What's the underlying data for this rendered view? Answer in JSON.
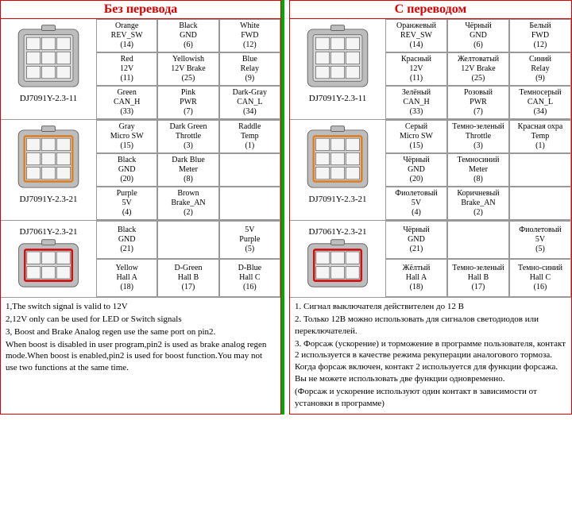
{
  "titles": {
    "left": "Без перевода",
    "right": "С переводом"
  },
  "connectors": {
    "c1": "DJ7091Y-2.3-11",
    "c2": "DJ7091Y-2.3-21",
    "c3": "DJ7061Y-2.3-21"
  },
  "left": {
    "c1": [
      {
        "color": "Orange",
        "sig": "REV_SW",
        "num": "(14)"
      },
      {
        "color": "Black",
        "sig": "GND",
        "num": "(6)"
      },
      {
        "color": "White",
        "sig": "FWD",
        "num": "(12)"
      },
      {
        "color": "Red",
        "sig": "12V",
        "num": "(11)"
      },
      {
        "color": "Yellowish",
        "sig": "12V Brake",
        "num": "(25)"
      },
      {
        "color": "Blue",
        "sig": "Relay",
        "num": "(9)"
      },
      {
        "color": "Green",
        "sig": "CAN_H",
        "num": "(33)"
      },
      {
        "color": "Pink",
        "sig": "PWR",
        "num": "(7)"
      },
      {
        "color": "Dark-Gray",
        "sig": "CAN_L",
        "num": "(34)"
      }
    ],
    "c2": [
      {
        "color": "Gray",
        "sig": "Micro SW",
        "num": "(15)"
      },
      {
        "color": "Dark Green",
        "sig": "Throttle",
        "num": "(3)"
      },
      {
        "color": "Raddle",
        "sig": "Temp",
        "num": "(1)"
      },
      {
        "color": "Black",
        "sig": "GND",
        "num": "(20)"
      },
      {
        "color": "Dark Blue",
        "sig": "Meter",
        "num": "(8)"
      },
      {
        "color": "",
        "sig": "",
        "num": ""
      },
      {
        "color": "Purple",
        "sig": "5V",
        "num": "(4)"
      },
      {
        "color": "Brown",
        "sig": "Brake_AN",
        "num": "(2)"
      },
      {
        "color": "",
        "sig": "",
        "num": ""
      }
    ],
    "c3": [
      {
        "color": "Black",
        "sig": "GND",
        "num": "(21)"
      },
      {
        "color": "",
        "sig": "",
        "num": ""
      },
      {
        "color": "5V",
        "sig": "Purple",
        "num": "(5)"
      },
      {
        "color": "Yellow",
        "sig": "Hall A",
        "num": "(18)"
      },
      {
        "color": "D-Green",
        "sig": "Hall B",
        "num": "(17)"
      },
      {
        "color": "D-Blue",
        "sig": "Hall C",
        "num": "(16)"
      }
    ]
  },
  "right": {
    "c1": [
      {
        "color": "Оранжевый",
        "sig": "REV_SW",
        "num": "(14)"
      },
      {
        "color": "Чёрный",
        "sig": "GND",
        "num": "(6)"
      },
      {
        "color": "Белый",
        "sig": "FWD",
        "num": "(12)"
      },
      {
        "color": "Красный",
        "sig": "12V",
        "num": "(11)"
      },
      {
        "color": "Желтоватый",
        "sig": "12V Brake",
        "num": "(25)"
      },
      {
        "color": "Синий",
        "sig": "Relay",
        "num": "(9)"
      },
      {
        "color": "Зелёный",
        "sig": "CAN_H",
        "num": "(33)"
      },
      {
        "color": "Розовый",
        "sig": "PWR",
        "num": "(7)"
      },
      {
        "color": "Темносерый",
        "sig": "CAN_L",
        "num": "(34)"
      }
    ],
    "c2": [
      {
        "color": "Серый",
        "sig": "Micro SW",
        "num": "(15)"
      },
      {
        "color": "Темно-зеленый",
        "sig": "Throttle",
        "num": "(3)"
      },
      {
        "color": "Красная охра",
        "sig": "Temp",
        "num": "(1)"
      },
      {
        "color": "Чёрный",
        "sig": "GND",
        "num": "(20)"
      },
      {
        "color": "Темносиний",
        "sig": "Meter",
        "num": "(8)"
      },
      {
        "color": "",
        "sig": "",
        "num": ""
      },
      {
        "color": "Фиолетовый",
        "sig": "5V",
        "num": "(4)"
      },
      {
        "color": "Коричневый",
        "sig": "Brake_AN",
        "num": "(2)"
      },
      {
        "color": "",
        "sig": "",
        "num": ""
      }
    ],
    "c3": [
      {
        "color": "Чёрный",
        "sig": "GND",
        "num": "(21)"
      },
      {
        "color": "",
        "sig": "",
        "num": ""
      },
      {
        "color": "Фиолетовый",
        "sig": "5V",
        "num": "(5)"
      },
      {
        "color": "Жёлтый",
        "sig": "Hall A",
        "num": "(18)"
      },
      {
        "color": "Темно-зеленый",
        "sig": "Hall B",
        "num": "(17)"
      },
      {
        "color": "Темно-синий",
        "sig": "Hall C",
        "num": "(16)"
      }
    ]
  },
  "notes_left": [
    "1,The switch signal is valid to 12V",
    "2,12V only can be used for LED or Switch signals",
    "3, Boost and Brake Analog regen use the same port on pin2.",
    "When boost is disabled in user program,pin2 is used as brake analog regen mode.When boost is enabled,pin2 is used for boost function.You may not use two functions at the same time."
  ],
  "notes_right": [
    "1. Сигнал выключателя действителен до 12 В",
    "2. Только 12В можно использовать для сигналов светодиодов или переключателей.",
    "3. Форсаж (ускорение) и торможение в программе пользователя, контакт 2 используется в качестве режима рекуперации аналогового тормоза. Когда форсаж включен, контакт 2 используется для функции форсажа. Вы не можете использовать две функции одновременно.",
    "(Форсаж и ускорение используют один контакт в зависимости от установки в программе)"
  ],
  "style": {
    "border_color": "#d00",
    "divider_color": "#0a0",
    "connector_shell": "#bdbdbd",
    "connector_inner": "#d9d9d9",
    "cavity": "#f5f5f5",
    "highlight_orange": "#e08020",
    "highlight_red": "#d01010",
    "font": "Times New Roman"
  }
}
